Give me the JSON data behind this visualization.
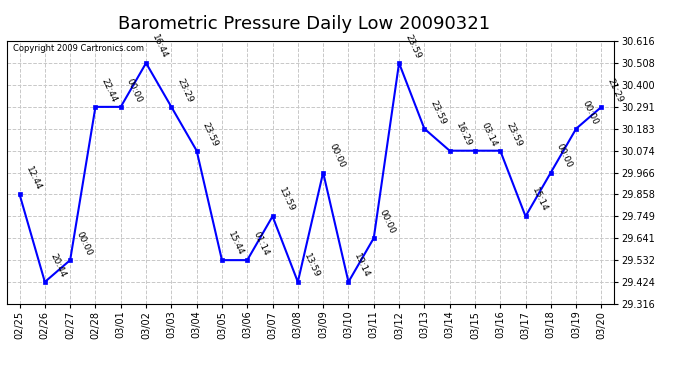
{
  "title": "Barometric Pressure Daily Low 20090321",
  "copyright": "Copyright 2009 Cartronics.com",
  "x_labels": [
    "02/25",
    "02/26",
    "02/27",
    "02/28",
    "03/01",
    "03/02",
    "03/03",
    "03/04",
    "03/05",
    "03/06",
    "03/07",
    "03/08",
    "03/09",
    "03/10",
    "03/11",
    "03/12",
    "03/13",
    "03/14",
    "03/15",
    "03/16",
    "03/17",
    "03/18",
    "03/19",
    "03/20"
  ],
  "y_values": [
    29.858,
    29.424,
    29.532,
    30.291,
    30.291,
    30.508,
    30.291,
    30.074,
    29.532,
    29.532,
    29.749,
    29.424,
    29.966,
    29.424,
    29.641,
    30.508,
    30.183,
    30.074,
    30.074,
    30.074,
    29.749,
    29.966,
    30.183,
    30.291
  ],
  "point_labels": [
    "12:44",
    "20:44",
    "00:00",
    "22:44",
    "00:00",
    "16:44",
    "23:29",
    "23:59",
    "15:44",
    "01:14",
    "13:59",
    "13:59",
    "00:00",
    "19:14",
    "00:00",
    "23:59",
    "23:59",
    "16:29",
    "03:14",
    "23:59",
    "15:14",
    "00:00",
    "00:00",
    "21:29"
  ],
  "ylim": [
    29.316,
    30.616
  ],
  "yticks": [
    29.316,
    29.424,
    29.532,
    29.641,
    29.749,
    29.858,
    29.966,
    30.074,
    30.183,
    30.291,
    30.4,
    30.508,
    30.616
  ],
  "line_color": "blue",
  "marker_color": "blue",
  "background_color": "#ffffff",
  "grid_color": "#c8c8c8",
  "title_fontsize": 13,
  "tick_fontsize": 7,
  "point_label_fontsize": 6.5,
  "copyright_fontsize": 6
}
